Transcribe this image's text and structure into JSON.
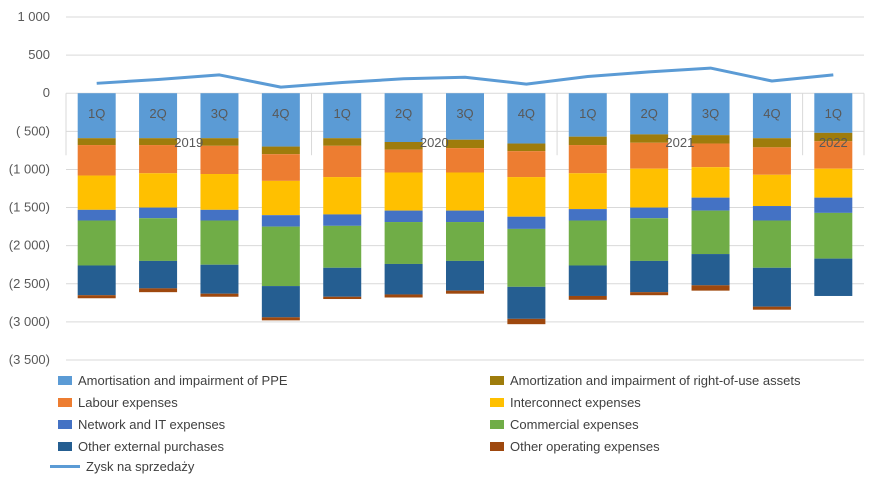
{
  "chart_data": {
    "type": "bar",
    "stacked": true,
    "categories": [
      "1Q",
      "2Q",
      "3Q",
      "4Q",
      "1Q",
      "2Q",
      "3Q",
      "4Q",
      "1Q",
      "2Q",
      "3Q",
      "4Q",
      "1Q"
    ],
    "years": [
      "2019",
      "2020",
      "2021",
      "2022"
    ],
    "ylim": [
      -3500,
      1000
    ],
    "yticks": [
      "1 000",
      "500",
      "0",
      "( 500)",
      "(1 000)",
      "(1 500)",
      "(2 000)",
      "(2 500)",
      "(3 000)",
      "(3 500)"
    ],
    "legend_position": "bottom",
    "series": [
      {
        "name": "Amortisation and impairment of PPE",
        "color": "#5b9bd5",
        "values": [
          -590,
          -590,
          -590,
          -700,
          -590,
          -640,
          -610,
          -660,
          -570,
          -540,
          -550,
          -590,
          -520
        ]
      },
      {
        "name": "Amortization and impairment of right-of-use assets",
        "color": "#9e7c0c",
        "values": [
          -90,
          -90,
          -100,
          -100,
          -100,
          -100,
          -110,
          -100,
          -110,
          -110,
          -110,
          -120,
          -110
        ]
      },
      {
        "name": "Labour expenses",
        "color": "#ed7d31",
        "values": [
          -400,
          -370,
          -370,
          -350,
          -410,
          -300,
          -320,
          -340,
          -370,
          -340,
          -310,
          -360,
          -360
        ]
      },
      {
        "name": "Interconnect expenses",
        "color": "#ffc000",
        "values": [
          -450,
          -450,
          -470,
          -450,
          -490,
          -500,
          -500,
          -520,
          -470,
          -510,
          -400,
          -410,
          -380
        ]
      },
      {
        "name": "Network and IT expenses",
        "color": "#4472c4",
        "values": [
          -140,
          -140,
          -140,
          -150,
          -150,
          -150,
          -150,
          -160,
          -150,
          -140,
          -170,
          -190,
          -200
        ]
      },
      {
        "name": "Commercial expenses",
        "color": "#70ad47",
        "values": [
          -590,
          -560,
          -580,
          -780,
          -550,
          -550,
          -510,
          -760,
          -590,
          -560,
          -570,
          -620,
          -600
        ]
      },
      {
        "name": "Other external purchases",
        "color": "#255e91",
        "values": [
          -390,
          -360,
          -380,
          -410,
          -380,
          -400,
          -390,
          -420,
          -400,
          -410,
          -410,
          -510,
          -490
        ]
      },
      {
        "name": "Other operating expenses",
        "color": "#9e480e",
        "values": [
          -40,
          -50,
          -40,
          -40,
          -30,
          -40,
          -40,
          -70,
          -50,
          -40,
          -70,
          -40,
          0
        ]
      }
    ],
    "line": {
      "name": "Zysk na sprzedaży",
      "color": "#5b9bd5",
      "values": [
        130,
        180,
        240,
        80,
        140,
        190,
        210,
        120,
        220,
        280,
        330,
        160,
        240
      ]
    }
  }
}
